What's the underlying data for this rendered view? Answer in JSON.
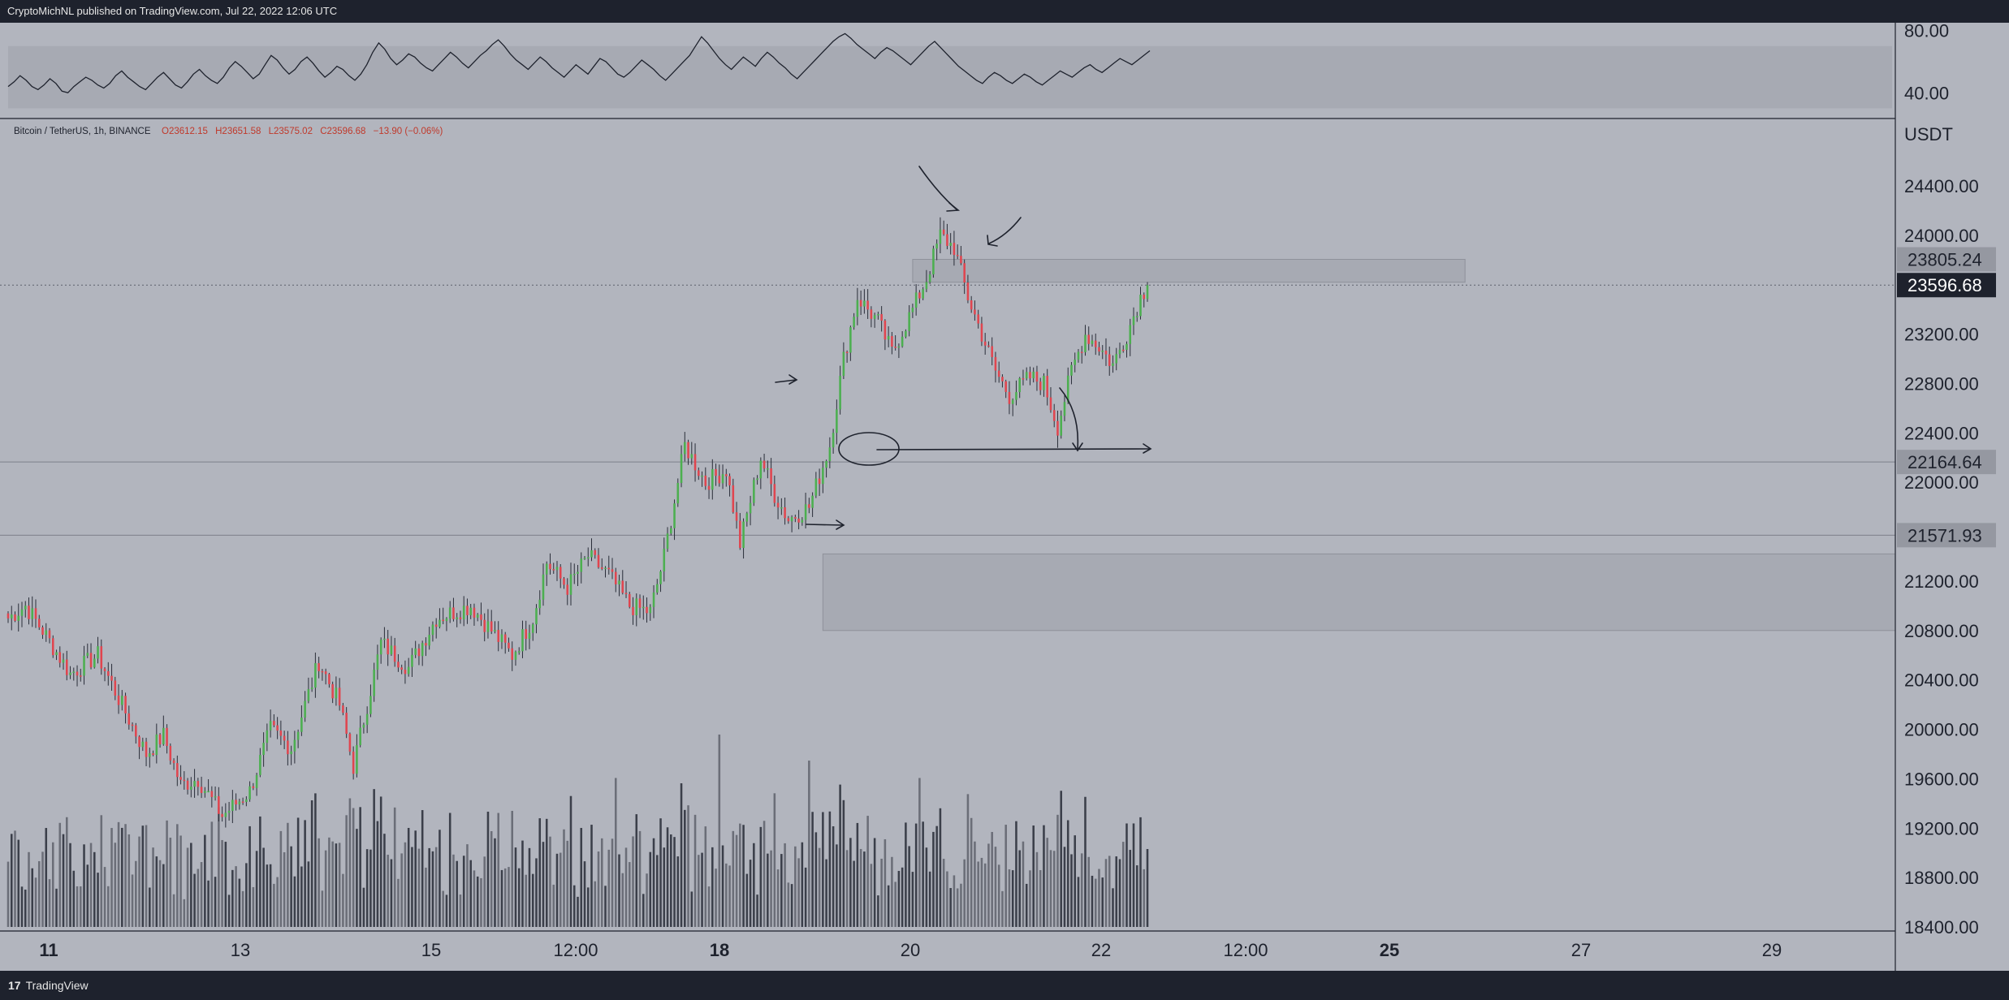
{
  "header": {
    "publish_info": "CryptoMichNL published on TradingView.com, Jul 22, 2022 12:06 UTC"
  },
  "footer": {
    "logo_glyph": "17",
    "logo_text": "TradingView"
  },
  "legend": {
    "symbol": "Bitcoin / TetherUS, 1h, BINANCE",
    "open": "O23612.15",
    "high": "H23651.58",
    "low": "L23575.02",
    "close": "C23596.68",
    "change": "−13.90 (−0.06%)"
  },
  "colors": {
    "background": "#b2b5be",
    "pane_bg": "#b2b5be",
    "up": "#4caf50",
    "down": "#e0454f",
    "wick": "#2a2e39",
    "volume": "#2a2e39",
    "grid_line": "#9598a1",
    "text_dark": "#1e222d",
    "legend_red": "#c0392b",
    "zone_fill": "#a7aab3"
  },
  "chart_data": [
    {
      "type": "line",
      "name": "oscillator",
      "y_ticks": [
        "80.00",
        "40.00"
      ],
      "ylim": [
        25,
        85
      ],
      "band": [
        30,
        70
      ],
      "values": [
        44,
        47,
        51,
        48,
        44,
        42,
        45,
        49,
        46,
        41,
        40,
        44,
        47,
        50,
        48,
        45,
        43,
        46,
        51,
        54,
        50,
        47,
        44,
        42,
        46,
        50,
        53,
        49,
        45,
        43,
        47,
        52,
        55,
        51,
        48,
        46,
        50,
        56,
        60,
        57,
        53,
        49,
        52,
        58,
        64,
        61,
        56,
        52,
        55,
        60,
        63,
        59,
        54,
        50,
        53,
        57,
        55,
        51,
        48,
        52,
        58,
        66,
        72,
        68,
        62,
        58,
        61,
        65,
        63,
        59,
        56,
        54,
        58,
        62,
        66,
        63,
        59,
        56,
        60,
        64,
        67,
        71,
        74,
        70,
        65,
        61,
        58,
        55,
        59,
        63,
        60,
        56,
        53,
        50,
        54,
        58,
        55,
        52,
        57,
        62,
        60,
        56,
        52,
        50,
        53,
        57,
        61,
        58,
        55,
        51,
        48,
        52,
        56,
        60,
        64,
        70,
        76,
        72,
        67,
        62,
        58,
        55,
        59,
        63,
        60,
        57,
        62,
        66,
        63,
        59,
        56,
        52,
        49,
        53,
        57,
        61,
        65,
        69,
        73,
        76,
        78,
        75,
        71,
        68,
        65,
        62,
        66,
        69,
        67,
        64,
        61,
        58,
        62,
        66,
        70,
        73,
        69,
        65,
        61,
        57,
        54,
        51,
        48,
        46,
        50,
        53,
        51,
        48,
        46,
        49,
        52,
        50,
        47,
        45,
        48,
        51,
        54,
        52,
        50,
        53,
        56,
        58,
        55,
        53,
        56,
        59,
        62,
        60,
        58,
        61,
        64,
        67
      ]
    },
    {
      "type": "candlestick",
      "name": "Bitcoin / TetherUS, 1h, BINANCE",
      "y_ticks": [
        "24400.00",
        "24000.00",
        "23200.00",
        "22800.00",
        "22400.00",
        "22000.00",
        "21200.00",
        "20800.00",
        "20400.00",
        "20000.00",
        "19600.00",
        "19200.00",
        "18800.00",
        "18400.00"
      ],
      "y_label": "USDT",
      "ylim": [
        18400,
        25200
      ],
      "x_ticks": [
        "11",
        "13",
        "15",
        "12:00",
        "18",
        "20",
        "22",
        "12:00",
        "25",
        "27",
        "29"
      ],
      "anchors": [
        [
          0,
          20900
        ],
        [
          5,
          21000
        ],
        [
          10,
          20800
        ],
        [
          18,
          20450
        ],
        [
          26,
          20600
        ],
        [
          32,
          20250
        ],
        [
          40,
          19800
        ],
        [
          45,
          19950
        ],
        [
          50,
          19550
        ],
        [
          55,
          19600
        ],
        [
          62,
          19300
        ],
        [
          70,
          19500
        ],
        [
          76,
          20000
        ],
        [
          82,
          19850
        ],
        [
          90,
          20550
        ],
        [
          96,
          20200
        ],
        [
          100,
          19700
        ],
        [
          108,
          20700
        ],
        [
          116,
          20500
        ],
        [
          124,
          20900
        ],
        [
          134,
          21000
        ],
        [
          140,
          20800
        ],
        [
          146,
          20600
        ],
        [
          152,
          20900
        ],
        [
          156,
          21350
        ],
        [
          162,
          21150
        ],
        [
          168,
          21400
        ],
        [
          174,
          21250
        ],
        [
          180,
          21000
        ],
        [
          186,
          20950
        ],
        [
          190,
          21400
        ],
        [
          196,
          22300
        ],
        [
          202,
          22000
        ],
        [
          208,
          22100
        ],
        [
          212,
          21500
        ],
        [
          218,
          22200
        ],
        [
          222,
          21900
        ],
        [
          226,
          21700
        ],
        [
          232,
          21800
        ],
        [
          238,
          22300
        ],
        [
          242,
          23000
        ],
        [
          246,
          23500
        ],
        [
          252,
          23300
        ],
        [
          256,
          23050
        ],
        [
          262,
          23400
        ],
        [
          266,
          23650
        ],
        [
          270,
          24000
        ],
        [
          274,
          23900
        ],
        [
          278,
          23500
        ],
        [
          282,
          23200
        ],
        [
          286,
          22900
        ],
        [
          290,
          22700
        ],
        [
          296,
          22850
        ],
        [
          300,
          22800
        ],
        [
          304,
          22450
        ],
        [
          308,
          22900
        ],
        [
          312,
          23200
        ],
        [
          316,
          23100
        ],
        [
          320,
          22950
        ],
        [
          324,
          23200
        ],
        [
          328,
          23500
        ],
        [
          330,
          23596.68
        ]
      ],
      "last_price": "23596.68",
      "price_labels": [
        {
          "text": "23805.24",
          "value": 23805.24,
          "style": "light"
        },
        {
          "text": "23596.68",
          "value": 23596.68,
          "style": "dark"
        },
        {
          "text": "22164.64",
          "value": 22164.64,
          "style": "light"
        },
        {
          "text": "21571.93",
          "value": 21571.93,
          "style": "light"
        }
      ],
      "horizontal_lines": [
        22164.64,
        21571.93
      ],
      "zones": [
        {
          "from_bar": 262,
          "to_bar": 422,
          "low": 23620,
          "high": 23805.24
        },
        {
          "from_bar": 236,
          "to_bar": 552,
          "low": 20800,
          "high": 21420
        }
      ],
      "volume": {
        "ylim": [
          0,
          1700
        ],
        "baseline_note": "overlaid in lower section of price pane"
      }
    }
  ]
}
